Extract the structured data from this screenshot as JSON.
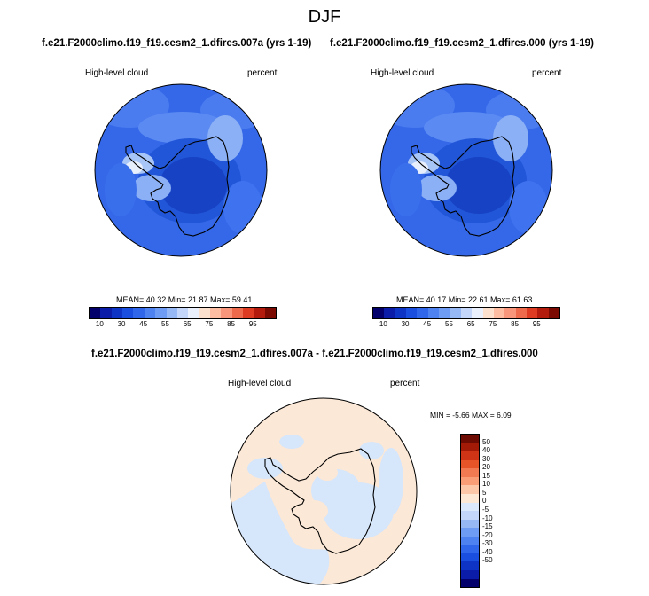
{
  "season": "DJF",
  "colors": {
    "abs_scale": [
      "#03006b",
      "#0a1ca8",
      "#0d34c4",
      "#1a4ede",
      "#2f66ea",
      "#4d82f0",
      "#6e9bf3",
      "#96b9f6",
      "#c4d7fb",
      "#ebf1fc",
      "#fde1cf",
      "#fcbda2",
      "#f7967a",
      "#ee6a4c",
      "#de3c22",
      "#b31c0c",
      "#7b0a03"
    ],
    "diff_scale": [
      "#03006b",
      "#0a1ca8",
      "#0d34c4",
      "#1a4ede",
      "#2f66ea",
      "#4d82f0",
      "#6e9bf3",
      "#96b9f6",
      "#c4d7fb",
      "#dce8fb",
      "#fde8d6",
      "#fcc6a8",
      "#f99d77",
      "#f17a52",
      "#e65428",
      "#d03416",
      "#a31a06",
      "#6d0a02"
    ],
    "diff_panel_base": "#fce8d6",
    "diff_panel_blue": "#d6e6fb"
  },
  "panel1": {
    "title": "f.e21.F2000climo.f19_f19.cesm2_1.dfires.007a (yrs 1-19)",
    "variable": "High-level cloud",
    "units": "percent",
    "stats": "MEAN= 40.32  Min= 21.87  Max= 59.41",
    "ticks": [
      "10",
      "30",
      "45",
      "55",
      "65",
      "75",
      "85",
      "95"
    ]
  },
  "panel2": {
    "title": "f.e21.F2000climo.f19_f19.cesm2_1.dfires.000 (yrs 1-19)",
    "variable": "High-level cloud",
    "units": "percent",
    "stats": "MEAN= 40.17  Min= 22.61  Max= 61.63",
    "ticks": [
      "10",
      "30",
      "45",
      "55",
      "65",
      "75",
      "85",
      "95"
    ]
  },
  "diff": {
    "title": "f.e21.F2000climo.f19_f19.cesm2_1.dfires.007a - f.e21.F2000climo.f19_f19.cesm2_1.dfires.000",
    "variable": "High-level cloud",
    "units": "percent",
    "stats": "MIN =  -5.66 MAX =  6.09",
    "ticks": [
      "50",
      "40",
      "30",
      "20",
      "15",
      "10",
      "5",
      "0",
      "-5",
      "-10",
      "-15",
      "-20",
      "-30",
      "-40",
      "-50"
    ]
  }
}
